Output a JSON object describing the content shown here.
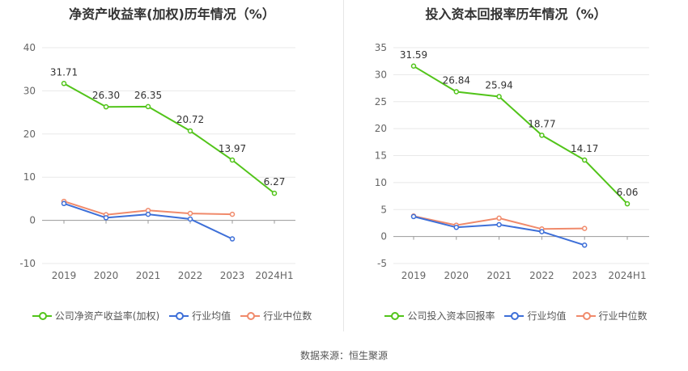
{
  "chart_data": [
    {
      "type": "line",
      "title": "净资产收益率(加权)历年情况（%）",
      "categories": [
        "2019",
        "2020",
        "2021",
        "2022",
        "2023",
        "2024H1"
      ],
      "ylim": [
        -10,
        40
      ],
      "yticks": [
        -10,
        0,
        10,
        20,
        30,
        40
      ],
      "ytick_labels": [
        "-10",
        "0",
        "10",
        "20",
        "30",
        "40"
      ],
      "grid": true,
      "legend_position": "bottom",
      "series": [
        {
          "name": "公司净资产收益率(加权)",
          "color": "#52c41a",
          "values": [
            31.71,
            26.3,
            26.35,
            20.72,
            13.97,
            6.27
          ],
          "labels": [
            "31.71",
            "26.30",
            "26.35",
            "20.72",
            "13.97",
            "6.27"
          ]
        },
        {
          "name": "行业均值",
          "color": "#3d6fd8",
          "values": [
            3.9,
            0.6,
            1.4,
            0.3,
            -4.3,
            null
          ]
        },
        {
          "name": "行业中位数",
          "color": "#f08a6b",
          "values": [
            4.4,
            1.3,
            2.3,
            1.6,
            1.4,
            null
          ]
        }
      ]
    },
    {
      "type": "line",
      "title": "投入资本回报率历年情况（%）",
      "categories": [
        "2019",
        "2020",
        "2021",
        "2022",
        "2023",
        "2024H1"
      ],
      "ylim": [
        -5,
        35
      ],
      "yticks": [
        -5,
        0,
        5,
        10,
        15,
        20,
        25,
        30,
        35
      ],
      "ytick_labels": [
        "-5",
        "0",
        "5",
        "10",
        "15",
        "20",
        "25",
        "30",
        "35"
      ],
      "grid": true,
      "legend_position": "bottom",
      "series": [
        {
          "name": "公司投入资本回报率",
          "color": "#52c41a",
          "values": [
            31.59,
            26.84,
            25.94,
            18.77,
            14.17,
            6.06
          ],
          "labels": [
            "31.59",
            "26.84",
            "25.94",
            "18.77",
            "14.17",
            "6.06"
          ]
        },
        {
          "name": "行业均值",
          "color": "#3d6fd8",
          "values": [
            3.7,
            1.7,
            2.2,
            0.9,
            -1.6,
            null
          ]
        },
        {
          "name": "行业中位数",
          "color": "#f08a6b",
          "values": [
            3.8,
            2.1,
            3.4,
            1.4,
            1.5,
            null
          ]
        }
      ]
    }
  ],
  "footer": {
    "source": "数据来源：恒生聚源"
  }
}
